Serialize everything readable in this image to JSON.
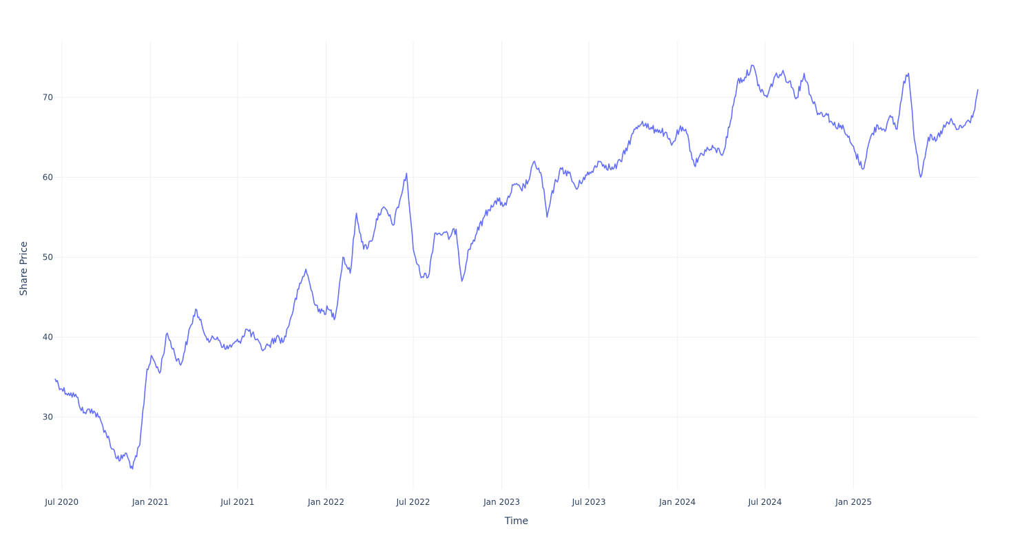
{
  "chart_data": {
    "type": "line",
    "title": "",
    "xlabel": "Time",
    "ylabel": "Share Price",
    "xlim": [
      "2020-06-17",
      "2025-09-16"
    ],
    "ylim": [
      21,
      77
    ],
    "x_ticks": [
      {
        "date": "2020-07-01",
        "label": "Jul 2020"
      },
      {
        "date": "2021-01-01",
        "label": "Jan 2021"
      },
      {
        "date": "2021-07-01",
        "label": "Jul 2021"
      },
      {
        "date": "2022-01-01",
        "label": "Jan 2022"
      },
      {
        "date": "2022-07-01",
        "label": "Jul 2022"
      },
      {
        "date": "2023-01-01",
        "label": "Jan 2023"
      },
      {
        "date": "2023-07-01",
        "label": "Jul 2023"
      },
      {
        "date": "2024-01-01",
        "label": "Jan 2024"
      },
      {
        "date": "2024-07-01",
        "label": "Jul 2024"
      },
      {
        "date": "2025-01-01",
        "label": "Jan 2025"
      }
    ],
    "y_ticks": [
      30,
      40,
      50,
      60,
      70
    ],
    "grid": true,
    "line_color": "#636efa",
    "series": [
      {
        "x": [
          "2020-06-17",
          "2020-07-01",
          "2020-07-15",
          "2020-08-01",
          "2020-08-15",
          "2020-09-01",
          "2020-09-15",
          "2020-10-01",
          "2020-10-15",
          "2020-10-28",
          "2020-11-10",
          "2020-11-25",
          "2020-12-10",
          "2020-12-25",
          "2021-01-05",
          "2021-01-20",
          "2021-02-05",
          "2021-02-20",
          "2021-03-05",
          "2021-03-20",
          "2021-04-05",
          "2021-04-20",
          "2021-05-05",
          "2021-05-20",
          "2021-06-05",
          "2021-06-20",
          "2021-07-05",
          "2021-07-20",
          "2021-08-05",
          "2021-08-20",
          "2021-09-05",
          "2021-09-20",
          "2021-10-05",
          "2021-10-20",
          "2021-11-05",
          "2021-11-20",
          "2021-12-05",
          "2021-12-20",
          "2022-01-05",
          "2022-01-20",
          "2022-02-05",
          "2022-02-20",
          "2022-03-05",
          "2022-03-20",
          "2022-04-05",
          "2022-04-20",
          "2022-05-05",
          "2022-05-20",
          "2022-06-05",
          "2022-06-17",
          "2022-07-01",
          "2022-07-15",
          "2022-08-01",
          "2022-08-15",
          "2022-09-01",
          "2022-09-15",
          "2022-09-28",
          "2022-10-10",
          "2022-10-25",
          "2022-11-10",
          "2022-11-25",
          "2022-12-10",
          "2022-12-25",
          "2023-01-10",
          "2023-01-25",
          "2023-02-10",
          "2023-02-25",
          "2023-03-10",
          "2023-03-25",
          "2023-04-05",
          "2023-04-20",
          "2023-05-05",
          "2023-05-20",
          "2023-06-05",
          "2023-06-20",
          "2023-07-05",
          "2023-07-20",
          "2023-08-05",
          "2023-08-20",
          "2023-09-05",
          "2023-09-20",
          "2023-10-05",
          "2023-10-20",
          "2023-11-05",
          "2023-11-20",
          "2023-12-05",
          "2023-12-20",
          "2024-01-05",
          "2024-01-20",
          "2024-02-05",
          "2024-02-20",
          "2024-03-05",
          "2024-03-20",
          "2024-04-05",
          "2024-04-20",
          "2024-05-05",
          "2024-05-20",
          "2024-06-05",
          "2024-06-20",
          "2024-07-05",
          "2024-07-20",
          "2024-08-05",
          "2024-08-20",
          "2024-09-05",
          "2024-09-20",
          "2024-10-05",
          "2024-10-20",
          "2024-11-05",
          "2024-11-20",
          "2024-12-05",
          "2024-12-20",
          "2025-01-05",
          "2025-01-20",
          "2025-02-05",
          "2025-02-20",
          "2025-03-05",
          "2025-03-20",
          "2025-04-01",
          "2025-04-15",
          "2025-04-25",
          "2025-05-05",
          "2025-05-20",
          "2025-06-05",
          "2025-06-20",
          "2025-07-05",
          "2025-07-20",
          "2025-08-05",
          "2025-08-20",
          "2025-09-05",
          "2025-09-16"
        ],
        "y": [
          34.8,
          33.5,
          33.0,
          32.5,
          30.5,
          31.0,
          30.0,
          28.0,
          26.0,
          24.5,
          25.5,
          23.5,
          26.5,
          36.0,
          37.5,
          35.5,
          40.5,
          38.0,
          36.5,
          40.0,
          43.5,
          41.0,
          39.5,
          40.0,
          38.5,
          39.0,
          39.5,
          41.0,
          40.0,
          38.5,
          39.0,
          40.0,
          39.5,
          42.5,
          46.0,
          48.5,
          45.0,
          43.0,
          43.5,
          42.5,
          50.0,
          48.0,
          55.5,
          51.0,
          52.0,
          55.5,
          56.0,
          54.0,
          57.5,
          60.5,
          51.0,
          48.0,
          47.5,
          53.0,
          53.0,
          52.5,
          53.5,
          47.0,
          51.0,
          53.0,
          55.0,
          56.5,
          57.0,
          56.5,
          59.0,
          58.5,
          59.5,
          62.0,
          60.0,
          55.0,
          59.0,
          61.0,
          60.5,
          58.5,
          60.0,
          60.5,
          62.0,
          61.5,
          61.0,
          62.0,
          64.0,
          66.0,
          67.0,
          66.0,
          66.0,
          65.5,
          64.0,
          66.0,
          65.5,
          61.5,
          63.0,
          63.5,
          63.5,
          63.0,
          67.0,
          72.0,
          72.5,
          74.0,
          71.0,
          70.0,
          72.5,
          73.0,
          72.0,
          70.0,
          73.0,
          70.0,
          68.0,
          68.0,
          66.5,
          66.5,
          65.0,
          63.0,
          61.0,
          65.0,
          66.5,
          66.0,
          67.5,
          66.0,
          72.0,
          73.0,
          66.0,
          60.0,
          65.0,
          64.5,
          66.0,
          67.0,
          66.0,
          66.5,
          67.5,
          71.0
        ]
      }
    ]
  }
}
